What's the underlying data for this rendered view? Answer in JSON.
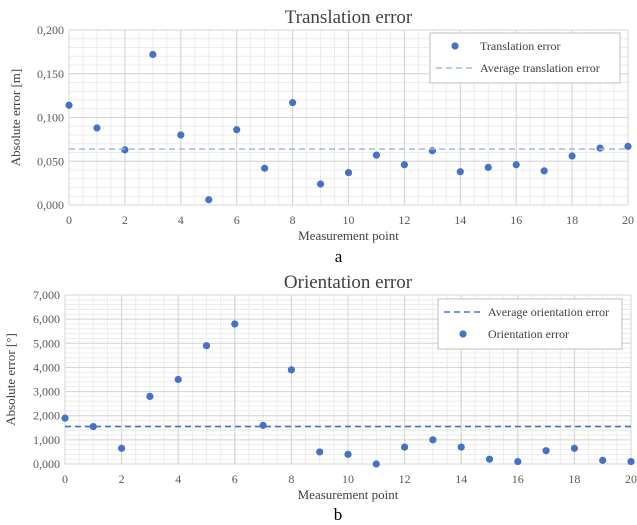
{
  "charts": [
    {
      "key": "a",
      "caption": "a",
      "chart_data": {
        "type": "scatter",
        "title": "Translation error",
        "xlabel": "Measurement point",
        "ylabel": "Absolute error [m]",
        "xlim": [
          0,
          20
        ],
        "ylim": [
          0,
          0.2
        ],
        "x_ticks": [
          "0",
          "2",
          "4",
          "6",
          "8",
          "10",
          "12",
          "14",
          "16",
          "18",
          "20"
        ],
        "y_ticks": [
          "0,000",
          "0,050",
          "0,100",
          "0,150",
          "0,200"
        ],
        "grid": true,
        "legend_position": "top-right",
        "series": [
          {
            "name": "Translation error",
            "kind": "points",
            "color": "#4472c4",
            "x": [
              0,
              1,
              2,
              3,
              4,
              5,
              6,
              7,
              8,
              9,
              10,
              11,
              12,
              13,
              14,
              15,
              16,
              17,
              18,
              19,
              20
            ],
            "y": [
              0.114,
              0.088,
              0.063,
              0.172,
              0.08,
              0.006,
              0.086,
              0.042,
              0.117,
              0.024,
              0.037,
              0.057,
              0.046,
              0.062,
              0.038,
              0.043,
              0.046,
              0.039,
              0.056,
              0.065,
              0.067
            ]
          },
          {
            "name": "Average translation error",
            "kind": "hline",
            "color": "#9fb8e0",
            "y": 0.064
          }
        ]
      }
    },
    {
      "key": "b",
      "caption": "b",
      "chart_data": {
        "type": "scatter",
        "title": "Orientation error",
        "xlabel": "Measurement point",
        "ylabel": "Absolute error [°]",
        "xlim": [
          0,
          20
        ],
        "ylim": [
          0,
          7
        ],
        "x_ticks": [
          "0",
          "2",
          "4",
          "6",
          "8",
          "10",
          "12",
          "14",
          "16",
          "18",
          "20"
        ],
        "y_ticks": [
          "0,000",
          "1,000",
          "2,000",
          "3,000",
          "4,000",
          "5,000",
          "6,000",
          "7,000"
        ],
        "grid": true,
        "legend_position": "top-right",
        "series": [
          {
            "name": "Average orientation error",
            "kind": "hline",
            "color": "#4472c4",
            "y": 1.55
          },
          {
            "name": "Orientation error",
            "kind": "points",
            "color": "#4472c4",
            "x": [
              0,
              1,
              2,
              3,
              4,
              5,
              6,
              7,
              8,
              9,
              10,
              11,
              12,
              13,
              14,
              15,
              16,
              17,
              18,
              19,
              20
            ],
            "y": [
              1.9,
              1.55,
              0.65,
              2.8,
              3.5,
              4.9,
              5.8,
              1.6,
              3.9,
              0.5,
              0.4,
              0.0,
              0.7,
              1.0,
              0.7,
              0.2,
              0.1,
              0.55,
              0.65,
              0.15,
              0.1
            ]
          }
        ]
      }
    }
  ]
}
